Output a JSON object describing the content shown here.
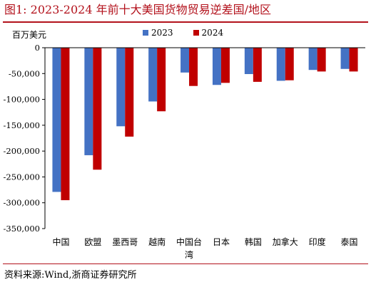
{
  "figure": {
    "title": "图1:   2023-2024 年前十大美国货物贸易逆差国/地区",
    "source": "资料来源:Wind,浙商证券研究所"
  },
  "chart_data": {
    "type": "bar",
    "title": "2023-2024 年前十大美国货物贸易逆差国/地区",
    "unit_label": "百万美元",
    "categories": [
      "中国",
      "欧盟",
      "墨西哥",
      "越南",
      "中国台湾",
      "日本",
      "韩国",
      "加拿大",
      "印度",
      "泰国"
    ],
    "category_label_lines": [
      [
        "中国"
      ],
      [
        "欧盟"
      ],
      [
        "墨西哥"
      ],
      [
        "越南"
      ],
      [
        "中国台",
        "湾"
      ],
      [
        "日本"
      ],
      [
        "韩国"
      ],
      [
        "加拿大"
      ],
      [
        "印度"
      ],
      [
        "泰国"
      ]
    ],
    "series": [
      {
        "name": "2023",
        "color": "#4472c4",
        "values": [
          -279000,
          -208000,
          -152000,
          -104000,
          -48000,
          -72000,
          -51000,
          -64000,
          -43000,
          -41000
        ]
      },
      {
        "name": "2024",
        "color": "#c00000",
        "values": [
          -295000,
          -236000,
          -172000,
          -123000,
          -74000,
          -68000,
          -66000,
          -63000,
          -46000,
          -46000
        ]
      }
    ],
    "ylim": [
      -350000,
      0
    ],
    "yticks": [
      0,
      -50000,
      -100000,
      -150000,
      -200000,
      -250000,
      -300000,
      -350000
    ],
    "ytick_labels": [
      "0",
      "-50,000",
      "-100,000",
      "-150,000",
      "-200,000",
      "-250,000",
      "-300,000",
      "-350,000"
    ],
    "xlabel": "",
    "ylabel": "",
    "grid": false,
    "legend_position": "top"
  }
}
